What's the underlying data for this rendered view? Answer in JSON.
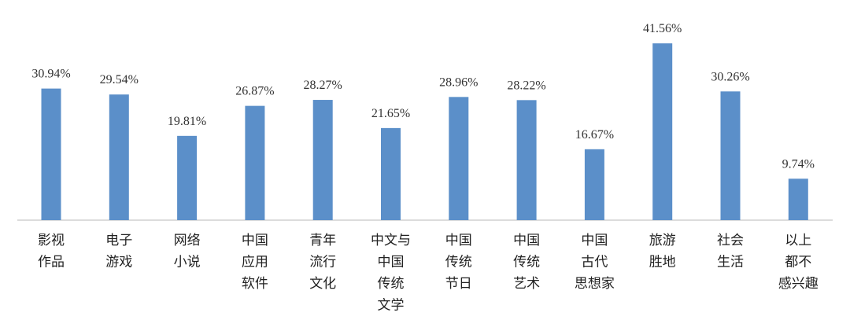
{
  "chart_data": {
    "type": "bar",
    "categories": [
      [
        "影视",
        "作品"
      ],
      [
        "电子",
        "游戏"
      ],
      [
        "网络",
        "小说"
      ],
      [
        "中国",
        "应用",
        "软件"
      ],
      [
        "青年",
        "流行",
        "文化"
      ],
      [
        "中文与",
        "中国",
        "传统",
        "文学"
      ],
      [
        "中国",
        "传统",
        "节日"
      ],
      [
        "中国",
        "传统",
        "艺术"
      ],
      [
        "中国",
        "古代",
        "思想家"
      ],
      [
        "旅游",
        "胜地"
      ],
      [
        "社会",
        "生活"
      ],
      [
        "以上",
        "都不",
        "感兴趣"
      ]
    ],
    "values": [
      30.94,
      29.54,
      19.81,
      26.87,
      28.27,
      21.65,
      28.96,
      28.22,
      16.67,
      41.56,
      30.26,
      9.74
    ],
    "value_labels": [
      "30.94%",
      "29.54%",
      "19.81%",
      "26.87%",
      "28.27%",
      "21.65%",
      "28.96%",
      "28.22%",
      "16.67%",
      "41.56%",
      "30.26%",
      "9.74%"
    ],
    "color": "#5b8fc9"
  }
}
